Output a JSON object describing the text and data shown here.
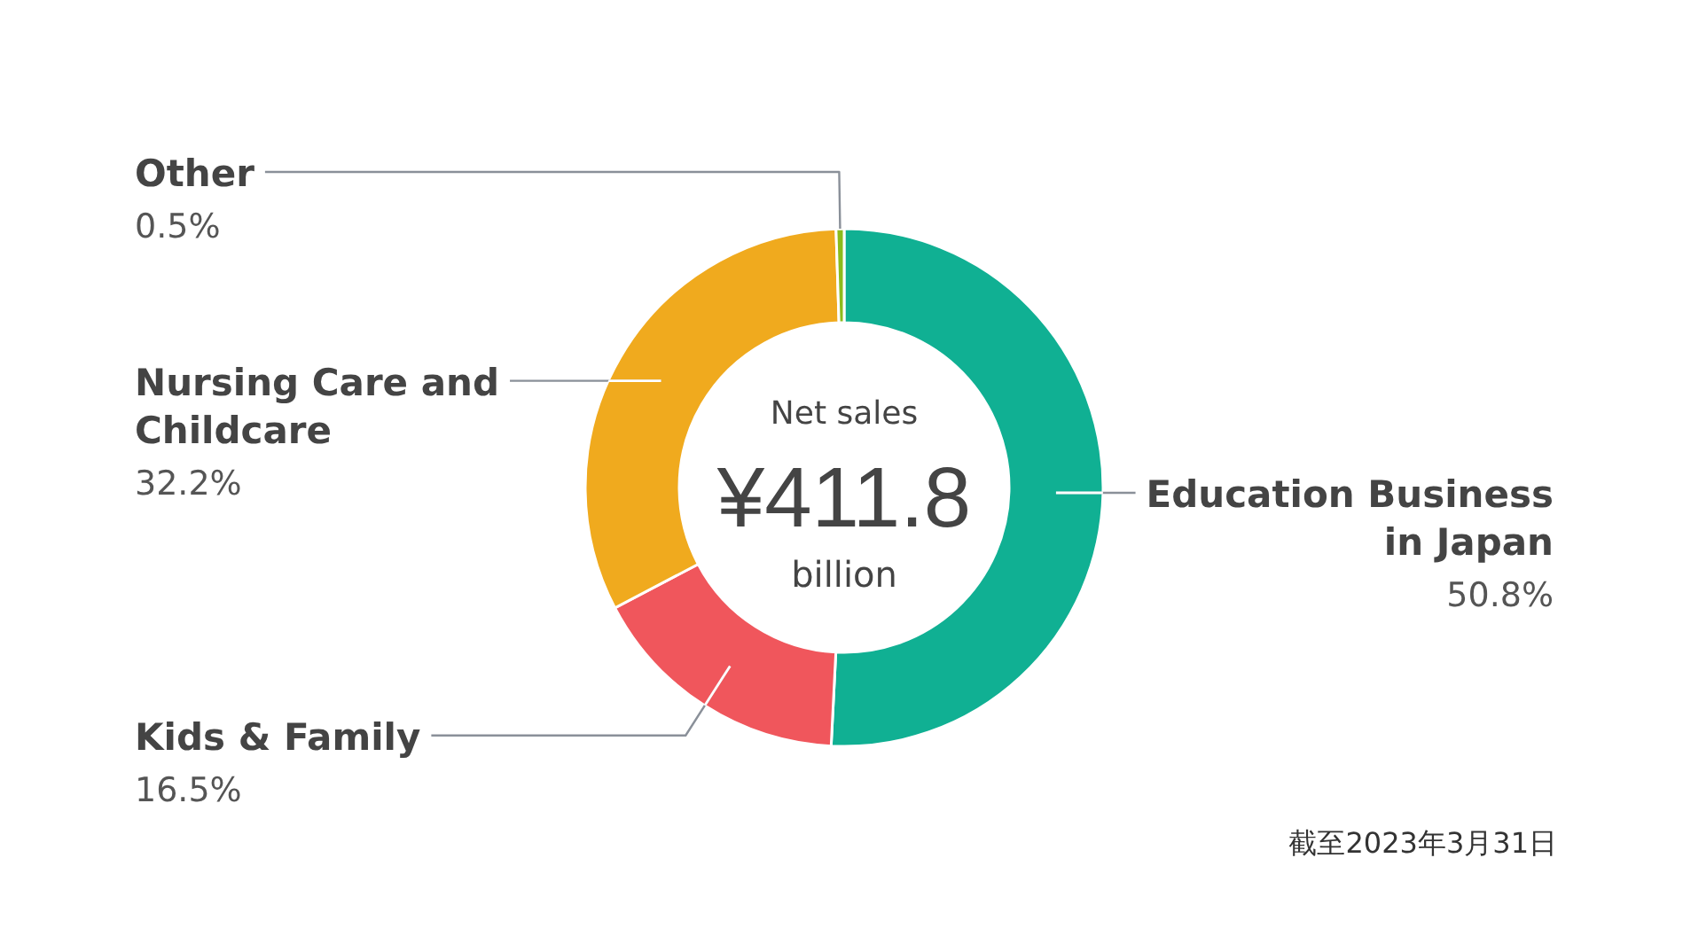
{
  "chart_data": {
    "type": "donut",
    "categories": [
      "Education Business in Japan",
      "Kids & Family",
      "Nursing Care and Childcare",
      "Other"
    ],
    "values": [
      50.8,
      16.5,
      32.2,
      0.5
    ],
    "colors": [
      "#10b093",
      "#f0565c",
      "#f0aa1e",
      "#8cbb1c"
    ],
    "value_labels": [
      "50.8%",
      "16.5%",
      "32.2%",
      "0.5%"
    ],
    "annotations": [
      "Net sales",
      "¥411.8",
      "billion",
      "截至2023年3月31日"
    ]
  }
}
